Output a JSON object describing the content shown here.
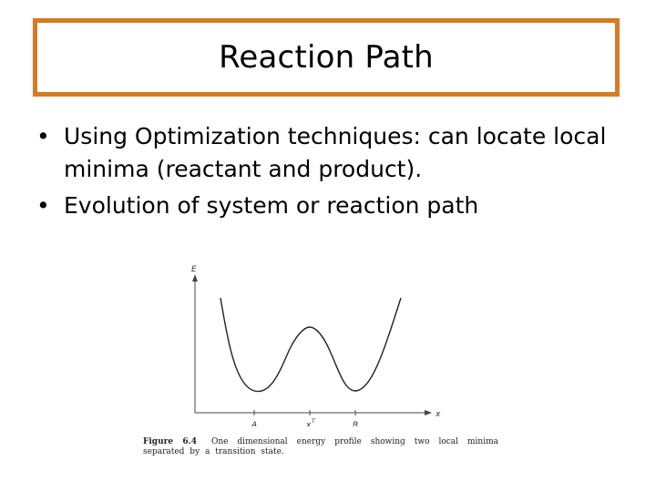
{
  "slide": {
    "title": "Reaction Path",
    "accent_color": "#d67a24"
  },
  "bullets": [
    {
      "marker": "•",
      "text": "Using Optimization techniques: can locate local minima (reactant and product)."
    },
    {
      "marker": "•",
      "text": "Evolution of system or reaction path"
    }
  ],
  "figure": {
    "y_axis_label": "E",
    "x_axis_label": "x",
    "tick_labels": [
      "A",
      "x",
      "B"
    ],
    "tick_superscript": "T",
    "caption_label": "Figure 6.4",
    "caption_text": "One dimensional energy profile showing two local minima separated by a transition state."
  }
}
